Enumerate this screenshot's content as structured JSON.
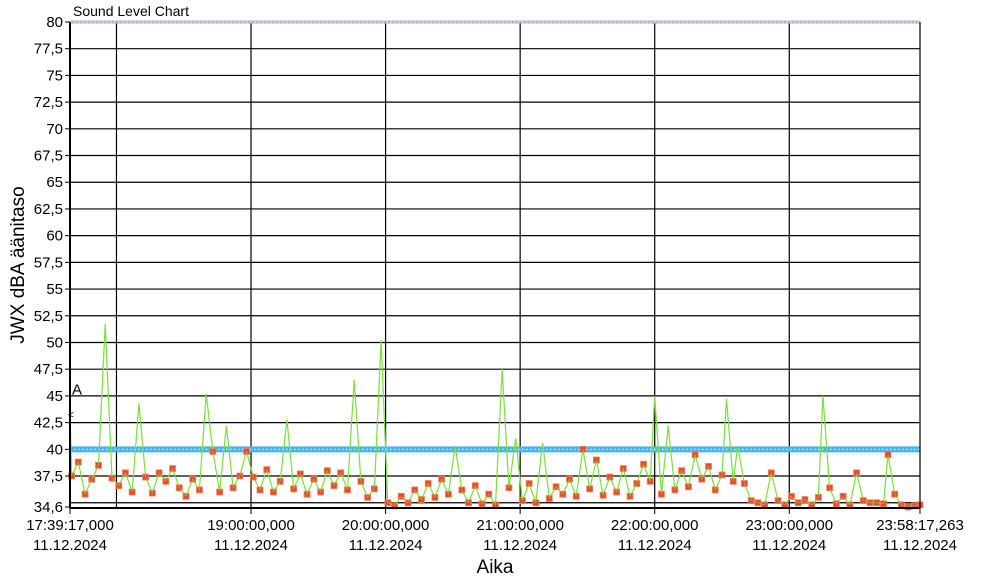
{
  "chart_data": {
    "type": "line",
    "title": "Sound Level Chart",
    "xlabel": "Aika",
    "ylabel": "JWX dBA äänitaso",
    "ylim": [
      34.6,
      80
    ],
    "xlim": [
      "17:39:17.000",
      "23:58:17.263"
    ],
    "grid": true,
    "y_ticks": [
      {
        "v": 34.6,
        "label": "34,6"
      },
      {
        "v": 37.5,
        "label": "37,5"
      },
      {
        "v": 40,
        "label": "40"
      },
      {
        "v": 42.5,
        "label": "42,5"
      },
      {
        "v": 45,
        "label": "45"
      },
      {
        "v": 47.5,
        "label": "47,5"
      },
      {
        "v": 50,
        "label": "50"
      },
      {
        "v": 52.5,
        "label": "52,5"
      },
      {
        "v": 55,
        "label": "55"
      },
      {
        "v": 57.5,
        "label": "57,5"
      },
      {
        "v": 60,
        "label": "60"
      },
      {
        "v": 62.5,
        "label": "62,5"
      },
      {
        "v": 65,
        "label": "65"
      },
      {
        "v": 67.5,
        "label": "67,5"
      },
      {
        "v": 70,
        "label": "70"
      },
      {
        "v": 72.5,
        "label": "72,5"
      },
      {
        "v": 75,
        "label": "75"
      },
      {
        "v": 77.5,
        "label": "77,5"
      },
      {
        "v": 80,
        "label": "80"
      }
    ],
    "y_gridlines": [
      35,
      37.5,
      40,
      42.5,
      45,
      47.5,
      50,
      52.5,
      55,
      57.5,
      60,
      62.5,
      65,
      67.5,
      70,
      72.5,
      75,
      77.5
    ],
    "x_ticks": [
      {
        "t": "17:39:17.000",
        "time": "17:39:17,000",
        "date": "11.12.2024"
      },
      {
        "t": "19:00:00",
        "time": "19:00:00,000",
        "date": "11.12.2024"
      },
      {
        "t": "20:00:00",
        "time": "20:00:00,000",
        "date": "11.12.2024"
      },
      {
        "t": "21:00:00",
        "time": "21:00:00,000",
        "date": "11.12.2024"
      },
      {
        "t": "22:00:00",
        "time": "22:00:00,000",
        "date": "11.12.2024"
      },
      {
        "t": "23:00:00",
        "time": "23:00:00,000",
        "date": "11.12.2024"
      },
      {
        "t": "23:58:17.263",
        "time": "23:58:17,263",
        "date": "11.12.2024"
      }
    ],
    "x_gridlines": [
      "18:00:00",
      "19:00:00",
      "20:00:00",
      "21:00:00",
      "22:00:00",
      "23:00:00"
    ],
    "reference_lines": [
      {
        "value": 80,
        "color": "#aab4cc"
      },
      {
        "value": 40,
        "color": "#4db4ea"
      }
    ],
    "annotation": {
      "label": "A",
      "time": "17:39:17",
      "value": 45.5
    },
    "series": [
      {
        "line_color": "#7ee03c",
        "marker_color": "#e8473a",
        "points": [
          [
            "17:39:17",
            43.3
          ],
          [
            "17:40",
            37.5
          ],
          [
            "17:43",
            38.8
          ],
          [
            "17:46",
            35.8
          ],
          [
            "17:49",
            37.2
          ],
          [
            "17:52",
            38.5
          ],
          [
            "17:55",
            51.7
          ],
          [
            "17:58",
            37.3
          ],
          [
            "18:01",
            36.6
          ],
          [
            "18:04",
            37.8
          ],
          [
            "18:07",
            36.0
          ],
          [
            "18:10",
            44.3
          ],
          [
            "18:13",
            37.4
          ],
          [
            "18:16",
            35.9
          ],
          [
            "18:19",
            37.8
          ],
          [
            "18:22",
            37.0
          ],
          [
            "18:25",
            38.2
          ],
          [
            "18:28",
            36.4
          ],
          [
            "18:31",
            35.6
          ],
          [
            "18:34",
            37.2
          ],
          [
            "18:37",
            36.2
          ],
          [
            "18:40",
            45.2
          ],
          [
            "18:43",
            39.8
          ],
          [
            "18:46",
            36.0
          ],
          [
            "18:49",
            42.2
          ],
          [
            "18:52",
            36.4
          ],
          [
            "18:55",
            37.5
          ],
          [
            "18:58",
            39.8
          ],
          [
            "19:01",
            37.4
          ],
          [
            "19:04",
            36.2
          ],
          [
            "19:07",
            38.1
          ],
          [
            "19:10",
            36.0
          ],
          [
            "19:13",
            37.0
          ],
          [
            "19:16",
            42.8
          ],
          [
            "19:19",
            36.3
          ],
          [
            "19:22",
            37.7
          ],
          [
            "19:25",
            35.8
          ],
          [
            "19:28",
            37.2
          ],
          [
            "19:31",
            36.0
          ],
          [
            "19:34",
            38.0
          ],
          [
            "19:37",
            36.6
          ],
          [
            "19:40",
            37.8
          ],
          [
            "19:43",
            36.2
          ],
          [
            "19:46",
            46.5
          ],
          [
            "19:49",
            37.0
          ],
          [
            "19:52",
            35.5
          ],
          [
            "19:55",
            36.3
          ],
          [
            "19:58",
            50.2
          ],
          [
            "20:01",
            35.0
          ],
          [
            "20:04",
            34.7
          ],
          [
            "20:07",
            35.6
          ],
          [
            "20:10",
            35.0
          ],
          [
            "20:13",
            36.2
          ],
          [
            "20:16",
            35.3
          ],
          [
            "20:19",
            36.8
          ],
          [
            "20:22",
            35.5
          ],
          [
            "20:25",
            37.2
          ],
          [
            "20:28",
            35.8
          ],
          [
            "20:31",
            40.3
          ],
          [
            "20:34",
            36.2
          ],
          [
            "20:37",
            35.0
          ],
          [
            "20:40",
            36.6
          ],
          [
            "20:43",
            34.9
          ],
          [
            "20:46",
            35.8
          ],
          [
            "20:49",
            34.8
          ],
          [
            "20:52",
            47.5
          ],
          [
            "20:55",
            36.4
          ],
          [
            "20:58",
            41.0
          ],
          [
            "21:01",
            35.2
          ],
          [
            "21:04",
            36.8
          ],
          [
            "21:07",
            35.0
          ],
          [
            "21:10",
            40.6
          ],
          [
            "21:13",
            35.4
          ],
          [
            "21:16",
            36.5
          ],
          [
            "21:19",
            35.8
          ],
          [
            "21:22",
            37.2
          ],
          [
            "21:25",
            35.6
          ],
          [
            "21:28",
            40.0
          ],
          [
            "21:31",
            36.3
          ],
          [
            "21:34",
            39.0
          ],
          [
            "21:37",
            35.7
          ],
          [
            "21:40",
            37.4
          ],
          [
            "21:43",
            36.0
          ],
          [
            "21:46",
            38.2
          ],
          [
            "21:49",
            35.6
          ],
          [
            "21:52",
            36.8
          ],
          [
            "21:55",
            38.6
          ],
          [
            "21:58",
            37.0
          ],
          [
            "22:00",
            45.0
          ],
          [
            "22:03",
            35.8
          ],
          [
            "22:06",
            42.2
          ],
          [
            "22:09",
            36.2
          ],
          [
            "22:12",
            38.0
          ],
          [
            "22:15",
            36.5
          ],
          [
            "22:18",
            39.5
          ],
          [
            "22:21",
            37.2
          ],
          [
            "22:24",
            38.4
          ],
          [
            "22:27",
            36.2
          ],
          [
            "22:30",
            37.6
          ],
          [
            "22:32",
            44.7
          ],
          [
            "22:35",
            37.0
          ],
          [
            "22:37",
            40.3
          ],
          [
            "22:40",
            36.8
          ],
          [
            "22:43",
            35.2
          ],
          [
            "22:46",
            35.0
          ],
          [
            "22:49",
            34.8
          ],
          [
            "22:52",
            37.8
          ],
          [
            "22:55",
            35.2
          ],
          [
            "22:58",
            34.8
          ],
          [
            "23:01",
            35.6
          ],
          [
            "23:04",
            35.0
          ],
          [
            "23:07",
            35.3
          ],
          [
            "23:10",
            34.8
          ],
          [
            "23:13",
            35.5
          ],
          [
            "23:15",
            45.0
          ],
          [
            "23:18",
            36.4
          ],
          [
            "23:21",
            34.9
          ],
          [
            "23:24",
            35.6
          ],
          [
            "23:27",
            34.8
          ],
          [
            "23:30",
            37.8
          ],
          [
            "23:33",
            35.2
          ],
          [
            "23:36",
            35.0
          ],
          [
            "23:39",
            35.0
          ],
          [
            "23:42",
            34.9
          ],
          [
            "23:44",
            39.5
          ],
          [
            "23:47",
            35.8
          ],
          [
            "23:50",
            34.8
          ],
          [
            "23:53",
            34.6
          ],
          [
            "23:56",
            34.7
          ],
          [
            "23:58:17",
            34.8
          ]
        ]
      }
    ]
  }
}
